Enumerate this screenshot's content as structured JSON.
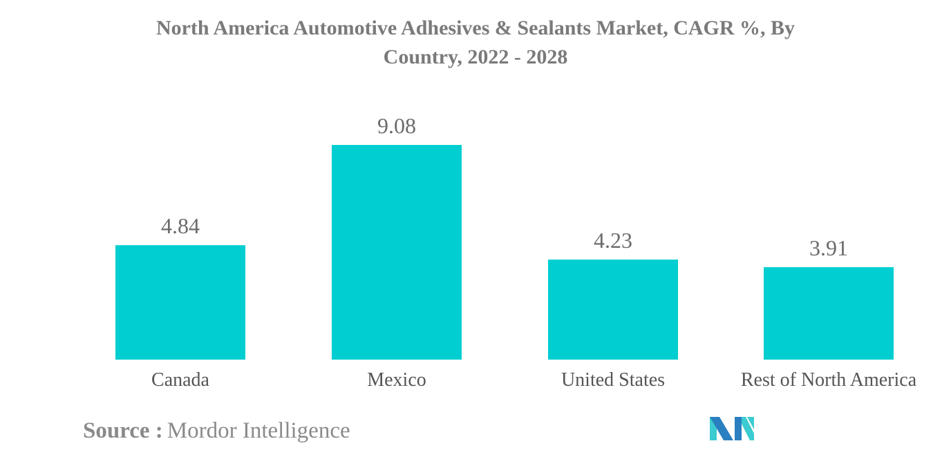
{
  "chart_data": {
    "type": "bar",
    "title": "North America Automotive Adhesives & Sealants Market, CAGR %, By Country, 2022 - 2028",
    "categories": [
      "Canada",
      "Mexico",
      "United States",
      "Rest of North America"
    ],
    "values": [
      4.84,
      9.08,
      4.23,
      3.91
    ],
    "xlabel": "",
    "ylabel": "",
    "ylim": [
      0,
      9.08
    ],
    "grid": false,
    "bar_color": "#00ced1"
  },
  "source": {
    "label": "Source :",
    "text": "Mordor Intelligence"
  },
  "logo": {
    "colors": [
      "#2a7fc0",
      "#3ccbd0"
    ]
  }
}
